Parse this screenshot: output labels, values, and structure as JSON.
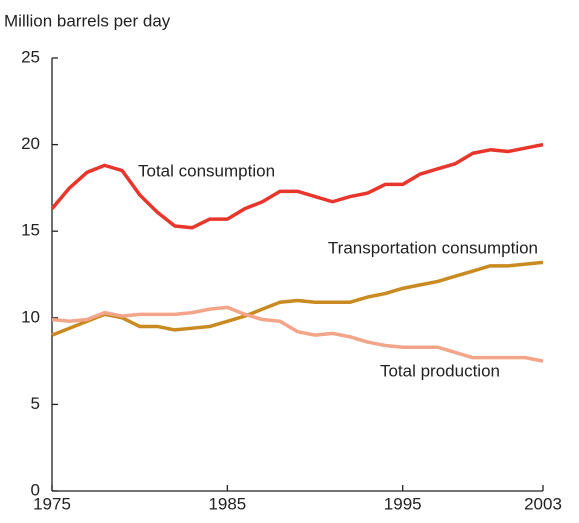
{
  "chart_data": {
    "type": "line",
    "ylabel": "Million barrels per day",
    "x": [
      1975,
      1976,
      1977,
      1978,
      1979,
      1980,
      1981,
      1982,
      1983,
      1984,
      1985,
      1986,
      1987,
      1988,
      1989,
      1990,
      1991,
      1992,
      1993,
      1994,
      1995,
      1996,
      1997,
      1998,
      1999,
      2000,
      2001,
      2002,
      2003
    ],
    "xlim": [
      1975,
      2003
    ],
    "xticks": [
      1975,
      1985,
      1995,
      2003
    ],
    "ylim": [
      0,
      25
    ],
    "yticks": [
      0,
      5,
      10,
      15,
      20,
      25
    ],
    "series": [
      {
        "name": "Total consumption",
        "color": "#e8362c",
        "values": [
          16.3,
          17.5,
          18.4,
          18.8,
          18.5,
          17.1,
          16.1,
          15.3,
          15.2,
          15.7,
          15.7,
          16.3,
          16.7,
          17.3,
          17.3,
          17.0,
          16.7,
          17.0,
          17.2,
          17.7,
          17.7,
          18.3,
          18.6,
          18.9,
          19.5,
          19.7,
          19.6,
          19.8,
          20.0
        ]
      },
      {
        "name": "Transportation consumption",
        "color": "#c98a22",
        "values": [
          9.0,
          9.4,
          9.8,
          10.2,
          10.0,
          9.5,
          9.5,
          9.3,
          9.4,
          9.5,
          9.8,
          10.1,
          10.5,
          10.9,
          11.0,
          10.9,
          10.9,
          10.9,
          11.2,
          11.4,
          11.7,
          11.9,
          12.1,
          12.4,
          12.7,
          13.0,
          13.0,
          13.1,
          13.2
        ]
      },
      {
        "name": "Total production",
        "color": "#f3a58a",
        "values": [
          9.9,
          9.8,
          9.9,
          10.3,
          10.1,
          10.2,
          10.2,
          10.2,
          10.3,
          10.5,
          10.6,
          10.2,
          9.9,
          9.8,
          9.2,
          9.0,
          9.1,
          8.9,
          8.6,
          8.4,
          8.3,
          8.3,
          8.3,
          8.0,
          7.7,
          7.7,
          7.7,
          7.7,
          7.5
        ]
      }
    ]
  }
}
